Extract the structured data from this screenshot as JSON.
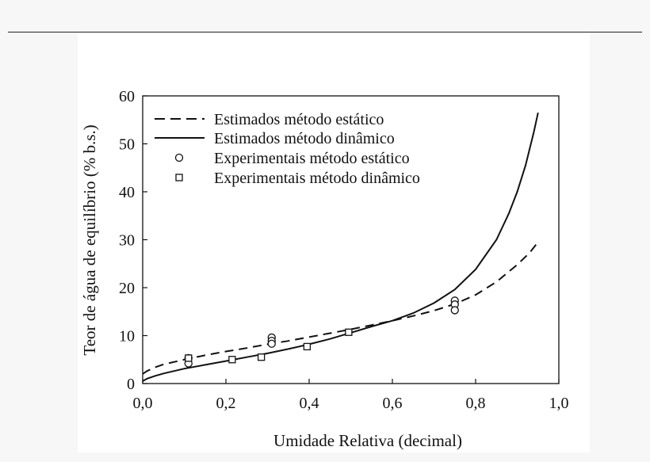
{
  "chart_data": {
    "type": "line",
    "xlabel": "Umidade Relativa (decimal)",
    "ylabel": "Teor de água de equilíbrio (% b.s.)",
    "xlim": [
      0.0,
      1.0
    ],
    "ylim": [
      0,
      60
    ],
    "xticks": [
      0.0,
      0.2,
      0.4,
      0.6,
      0.8,
      1.0
    ],
    "xtick_labels": [
      "0,0",
      "0,2",
      "0,4",
      "0,6",
      "0,8",
      "1,0"
    ],
    "yticks": [
      0,
      10,
      20,
      30,
      40,
      50,
      60
    ],
    "ytick_labels": [
      "0",
      "10",
      "20",
      "30",
      "40",
      "50",
      "60"
    ],
    "grid": false,
    "legend_position": "top-left",
    "series": [
      {
        "name": "Estimados método estático",
        "style": "dashed-line",
        "color": "#111111",
        "points": [
          [
            0.0,
            2.0
          ],
          [
            0.01,
            2.6
          ],
          [
            0.03,
            3.4
          ],
          [
            0.05,
            4.0
          ],
          [
            0.1,
            5.0
          ],
          [
            0.15,
            5.9
          ],
          [
            0.2,
            6.7
          ],
          [
            0.25,
            7.4
          ],
          [
            0.3,
            8.2
          ],
          [
            0.35,
            8.9
          ],
          [
            0.4,
            9.7
          ],
          [
            0.45,
            10.5
          ],
          [
            0.5,
            11.3
          ],
          [
            0.55,
            12.2
          ],
          [
            0.6,
            13.1
          ],
          [
            0.65,
            14.1
          ],
          [
            0.7,
            15.2
          ],
          [
            0.75,
            16.6
          ],
          [
            0.8,
            18.5
          ],
          [
            0.85,
            21.2
          ],
          [
            0.9,
            24.8
          ],
          [
            0.93,
            27.3
          ],
          [
            0.95,
            29.5
          ]
        ]
      },
      {
        "name": "Estimados método dinâmico",
        "style": "solid-line",
        "color": "#111111",
        "points": [
          [
            0.0,
            0.5
          ],
          [
            0.01,
            1.0
          ],
          [
            0.03,
            1.6
          ],
          [
            0.05,
            2.1
          ],
          [
            0.1,
            3.1
          ],
          [
            0.15,
            3.9
          ],
          [
            0.2,
            4.7
          ],
          [
            0.25,
            5.5
          ],
          [
            0.3,
            6.3
          ],
          [
            0.35,
            7.2
          ],
          [
            0.4,
            8.2
          ],
          [
            0.45,
            9.3
          ],
          [
            0.5,
            10.6
          ],
          [
            0.55,
            11.9
          ],
          [
            0.6,
            13.1
          ],
          [
            0.65,
            14.7
          ],
          [
            0.7,
            16.8
          ],
          [
            0.75,
            19.6
          ],
          [
            0.8,
            23.8
          ],
          [
            0.85,
            30.0
          ],
          [
            0.88,
            35.5
          ],
          [
            0.9,
            40.0
          ],
          [
            0.92,
            45.5
          ],
          [
            0.94,
            52.5
          ],
          [
            0.95,
            56.5
          ]
        ]
      },
      {
        "name": "Experimentais método estático",
        "style": "open-circle",
        "color": "#111111",
        "points": [
          [
            0.11,
            5.3
          ],
          [
            0.11,
            4.2
          ],
          [
            0.31,
            9.6
          ],
          [
            0.31,
            8.9
          ],
          [
            0.31,
            8.3
          ],
          [
            0.75,
            17.3
          ],
          [
            0.75,
            16.5
          ],
          [
            0.75,
            15.3
          ]
        ]
      },
      {
        "name": "Experimentais método dinâmico",
        "style": "open-square",
        "color": "#111111",
        "points": [
          [
            0.11,
            5.3
          ],
          [
            0.215,
            5.0
          ],
          [
            0.285,
            5.5
          ],
          [
            0.395,
            7.7
          ],
          [
            0.495,
            10.7
          ]
        ]
      }
    ]
  }
}
